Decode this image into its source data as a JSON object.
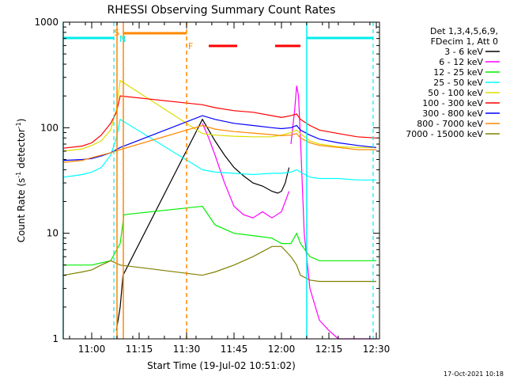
{
  "chart_data": {
    "type": "line",
    "title": "RHESSI Observing Summary Count Rates",
    "xlabel": "Start Time (19-Jul-02 10:51:02)",
    "ylabel": "Count Rate (s⁻¹ detector⁻¹)",
    "ylabel_parts": {
      "a": "Count Rate (s",
      "b": "-1",
      "c": " detector",
      "d": "-1",
      "e": ")"
    },
    "y_scale": "log",
    "xlim": [
      10.85,
      12.5167
    ],
    "ylim": [
      1,
      1000
    ],
    "x_ticks": [
      {
        "x": 11.0,
        "label": "11:00"
      },
      {
        "x": 11.25,
        "label": "11:15"
      },
      {
        "x": 11.5,
        "label": "11:30"
      },
      {
        "x": 11.75,
        "label": "11:45"
      },
      {
        "x": 12.0,
        "label": "12:00"
      },
      {
        "x": 12.25,
        "label": "12:15"
      },
      {
        "x": 12.5,
        "label": "12:30"
      }
    ],
    "y_ticks": [
      {
        "y": 1,
        "label": "1"
      },
      {
        "y": 10,
        "label": "10"
      },
      {
        "y": 100,
        "label": "100"
      },
      {
        "y": 1000,
        "label": "1000"
      }
    ],
    "legend_header": [
      "Det 1,3,4,5,6,9,",
      "FDecim 1, Att 0"
    ],
    "legend_placement": "right",
    "series": [
      {
        "name": "3 - 6 keV",
        "color": "#000000",
        "x": [
          11.13,
          11.15,
          11.165,
          11.5833,
          11.6167,
          11.65,
          11.7,
          11.75,
          11.8,
          11.85,
          11.9,
          11.95,
          11.98,
          12.0,
          12.02,
          12.04
        ],
        "y": [
          1.2,
          2.0,
          4.0,
          120,
          95,
          75,
          55,
          42,
          35,
          30,
          28,
          25,
          24,
          25,
          30,
          42
        ]
      },
      {
        "name": "6 - 12 keV",
        "color": "#ff00ff",
        "x": [
          12.05,
          12.07,
          12.08,
          12.09,
          12.1,
          12.12,
          12.15,
          12.2,
          12.25,
          12.3,
          12.35,
          12.4,
          12.45,
          12.5
        ],
        "y": [
          70,
          150,
          250,
          200,
          80,
          10,
          3,
          1.5,
          1.2,
          1.0,
          1.0,
          1.0,
          1.0,
          1.0
        ],
        "x0": [
          11.5833,
          11.6167,
          11.65,
          11.7,
          11.75,
          11.8,
          11.85,
          11.9,
          11.95,
          12.0,
          12.04
        ],
        "y0": [
          110,
          80,
          55,
          30,
          18,
          15,
          14,
          16,
          14,
          16,
          25
        ]
      },
      {
        "name": "12 - 25 keV",
        "color": "#00ee00",
        "x": [
          10.85,
          11.0,
          11.1,
          11.15,
          11.17,
          11.5833,
          11.65,
          11.75,
          11.85,
          11.95,
          12.0,
          12.05,
          12.08,
          12.1,
          12.15,
          12.2,
          12.3,
          12.4,
          12.5
        ],
        "y": [
          5,
          5,
          5.5,
          8,
          15,
          18,
          12,
          10,
          9.5,
          9,
          8,
          8,
          10,
          8,
          6,
          5.5,
          5.5,
          5.5,
          5.5
        ]
      },
      {
        "name": "25 - 50 keV",
        "color": "#00ffff",
        "x": [
          10.85,
          10.95,
          11.0,
          11.05,
          11.1,
          11.13,
          11.15,
          11.5833,
          11.65,
          11.75,
          11.85,
          11.95,
          12.0,
          12.05,
          12.08,
          12.1,
          12.15,
          12.2,
          12.3,
          12.4,
          12.5
        ],
        "y": [
          34,
          36,
          38,
          42,
          55,
          80,
          120,
          40,
          38,
          37,
          36,
          37,
          37,
          38,
          40,
          38,
          34,
          33,
          33,
          32,
          32
        ]
      },
      {
        "name": "50 - 100 keV",
        "color": "#dddd00",
        "x": [
          10.85,
          10.95,
          11.0,
          11.05,
          11.1,
          11.13,
          11.15,
          11.5833,
          11.65,
          11.75,
          11.85,
          11.95,
          12.0,
          12.05,
          12.08,
          12.1,
          12.15,
          12.2,
          12.3,
          12.4,
          12.5
        ],
        "y": [
          60,
          63,
          68,
          75,
          95,
          150,
          280,
          88,
          85,
          83,
          82,
          82,
          85,
          90,
          95,
          88,
          75,
          70,
          66,
          65,
          65
        ]
      },
      {
        "name": "100 - 300 keV",
        "color": "#ff0000",
        "x": [
          10.85,
          10.95,
          11.0,
          11.05,
          11.1,
          11.13,
          11.15,
          11.5833,
          11.65,
          11.75,
          11.85,
          11.95,
          12.0,
          12.05,
          12.08,
          12.1,
          12.15,
          12.2,
          12.3,
          12.4,
          12.5
        ],
        "y": [
          64,
          67,
          72,
          85,
          110,
          140,
          200,
          165,
          155,
          145,
          140,
          130,
          125,
          130,
          135,
          120,
          105,
          95,
          88,
          82,
          80
        ]
      },
      {
        "name": "300 - 800 keV",
        "color": "#0000ff",
        "x": [
          10.85,
          10.95,
          11.0,
          11.05,
          11.1,
          11.15,
          11.5833,
          11.65,
          11.75,
          11.85,
          11.95,
          12.0,
          12.05,
          12.08,
          12.1,
          12.15,
          12.2,
          12.3,
          12.4,
          12.5
        ],
        "y": [
          49,
          50,
          51,
          54,
          58,
          65,
          130,
          120,
          110,
          105,
          100,
          98,
          100,
          105,
          95,
          85,
          78,
          72,
          68,
          65
        ]
      },
      {
        "name": "800 - 7000 keV",
        "color": "#ff8800",
        "x": [
          10.85,
          10.95,
          11.0,
          11.05,
          11.1,
          11.15,
          11.5833,
          11.65,
          11.75,
          11.85,
          11.95,
          12.0,
          12.05,
          12.08,
          12.1,
          12.15,
          12.2,
          12.3,
          12.4,
          12.5
        ],
        "y": [
          47,
          49,
          52,
          55,
          58,
          62,
          105,
          97,
          92,
          89,
          86,
          84,
          85,
          88,
          80,
          72,
          68,
          65,
          62,
          62
        ]
      },
      {
        "name": "7000 - 15000 keV",
        "color": "#808000",
        "x": [
          10.85,
          10.95,
          11.0,
          11.05,
          11.1,
          11.15,
          11.5833,
          11.65,
          11.75,
          11.85,
          11.95,
          12.0,
          12.05,
          12.08,
          12.1,
          12.15,
          12.2,
          12.3,
          12.4,
          12.5
        ],
        "y": [
          4.0,
          4.3,
          4.5,
          5.0,
          5.5,
          5.0,
          4.0,
          4.3,
          5.0,
          6.0,
          7.5,
          7.5,
          6.0,
          5.0,
          4.0,
          3.6,
          3.5,
          3.5,
          3.5,
          3.5
        ]
      }
    ],
    "markers": {
      "saa_label": "S",
      "night_label": "N",
      "flare_label": "F",
      "saa_x": 11.1333,
      "night_x": 11.1667,
      "night_end_x": 11.5,
      "cyan_solid_1": 10.85,
      "cyan_solid_2": 12.1333,
      "cyan_dashed_1": 11.1167,
      "cyan_dashed_2": 12.4833,
      "cyan_bars": [
        [
          10.85,
          11.1167
        ],
        [
          12.1333,
          12.4833
        ]
      ],
      "orange_bar": [
        11.1667,
        11.5
      ],
      "red_bars": [
        [
          11.6167,
          11.7667
        ],
        [
          11.9667,
          12.1
        ]
      ],
      "flare_x": 11.5167
    },
    "footer": "17-Oct-2021 10:18"
  }
}
